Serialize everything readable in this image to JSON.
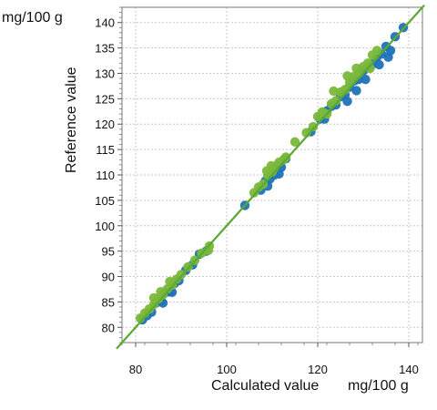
{
  "chart_data": {
    "type": "scatter",
    "xlabel": "Calculated value",
    "ylabel": "Reference value",
    "x_unit": "mg/100 g",
    "y_unit": "mg/100 g",
    "xlim": [
      77,
      143
    ],
    "ylim": [
      77,
      143
    ],
    "x_ticks": [
      "80",
      "100",
      "120",
      "140"
    ],
    "y_ticks": [
      "80",
      "85",
      "90",
      "95",
      "100",
      "105",
      "110",
      "115",
      "120",
      "125",
      "130",
      "135",
      "140"
    ],
    "grid": true,
    "fit_line": {
      "slope": 1,
      "intercept": 0,
      "color": "#5aa832"
    },
    "series": [
      {
        "color": "#1f72b8",
        "points": [
          [
            81.5,
            81.5
          ],
          [
            82.5,
            82.3
          ],
          [
            83.5,
            83.0
          ],
          [
            84.5,
            84.8
          ],
          [
            85.5,
            85.2
          ],
          [
            86.5,
            86.8
          ],
          [
            87.5,
            87.0
          ],
          [
            88.5,
            88.6
          ],
          [
            89.5,
            89.2
          ],
          [
            91.0,
            91.2
          ],
          [
            92.5,
            92.3
          ],
          [
            94.0,
            94.4
          ],
          [
            95.5,
            95.0
          ],
          [
            86.0,
            84.8
          ],
          [
            88.0,
            86.9
          ],
          [
            104.0,
            104.0
          ],
          [
            107.5,
            107.0
          ],
          [
            108.5,
            108.8
          ],
          [
            109.5,
            109.2
          ],
          [
            110.5,
            110.0
          ],
          [
            111.0,
            111.8
          ],
          [
            112.0,
            111.5
          ],
          [
            113.0,
            113.2
          ],
          [
            109.0,
            107.8
          ],
          [
            111.5,
            110.2
          ],
          [
            118.5,
            118.5
          ],
          [
            120.5,
            121.0
          ],
          [
            121.5,
            121.0
          ],
          [
            122.0,
            122.6
          ],
          [
            123.0,
            123.5
          ],
          [
            124.0,
            123.8
          ],
          [
            125.0,
            125.4
          ],
          [
            126.0,
            125.8
          ],
          [
            127.0,
            127.3
          ],
          [
            128.0,
            128.5
          ],
          [
            129.0,
            128.8
          ],
          [
            130.0,
            130.5
          ],
          [
            131.0,
            131.2
          ],
          [
            132.0,
            131.8
          ],
          [
            133.0,
            133.2
          ],
          [
            134.0,
            133.8
          ],
          [
            135.0,
            135.3
          ],
          [
            136.0,
            134.5
          ],
          [
            137.0,
            137.2
          ],
          [
            138.8,
            139.0
          ],
          [
            126.5,
            124.5
          ],
          [
            128.5,
            126.6
          ],
          [
            130.5,
            128.8
          ],
          [
            133.5,
            131.7
          ],
          [
            135.5,
            133.2
          ]
        ]
      },
      {
        "color": "#7ab83a",
        "points": [
          [
            81.0,
            81.8
          ],
          [
            82.0,
            82.8
          ],
          [
            83.0,
            83.6
          ],
          [
            84.0,
            84.5
          ],
          [
            85.0,
            85.6
          ],
          [
            86.0,
            86.4
          ],
          [
            87.0,
            87.6
          ],
          [
            88.0,
            88.3
          ],
          [
            89.0,
            89.5
          ],
          [
            90.0,
            90.4
          ],
          [
            91.5,
            91.9
          ],
          [
            93.0,
            93.2
          ],
          [
            94.5,
            94.6
          ],
          [
            96.0,
            95.2
          ],
          [
            96.2,
            96.0
          ],
          [
            84.0,
            85.8
          ],
          [
            85.5,
            87.0
          ],
          [
            87.5,
            89.0
          ],
          [
            106.0,
            106.5
          ],
          [
            107.0,
            107.6
          ],
          [
            108.0,
            108.2
          ],
          [
            109.0,
            110.0
          ],
          [
            110.0,
            110.6
          ],
          [
            110.5,
            111.4
          ],
          [
            111.5,
            112.5
          ],
          [
            112.5,
            113.0
          ],
          [
            109.8,
            111.8
          ],
          [
            108.8,
            110.8
          ],
          [
            113.0,
            113.5
          ],
          [
            115.0,
            116.5
          ],
          [
            117.5,
            118.3
          ],
          [
            119.0,
            119.5
          ],
          [
            120.0,
            121.5
          ],
          [
            121.0,
            122.4
          ],
          [
            122.0,
            122.0
          ],
          [
            123.0,
            124.0
          ],
          [
            124.0,
            124.6
          ],
          [
            125.0,
            126.3
          ],
          [
            126.0,
            126.8
          ],
          [
            127.0,
            128.2
          ],
          [
            128.0,
            129.4
          ],
          [
            129.0,
            130.0
          ],
          [
            130.0,
            131.3
          ],
          [
            131.0,
            132.0
          ],
          [
            132.0,
            133.6
          ],
          [
            133.0,
            134.5
          ],
          [
            123.5,
            126.5
          ],
          [
            126.5,
            129.5
          ],
          [
            128.5,
            131.0
          ],
          [
            131.5,
            131.0
          ]
        ]
      }
    ]
  }
}
